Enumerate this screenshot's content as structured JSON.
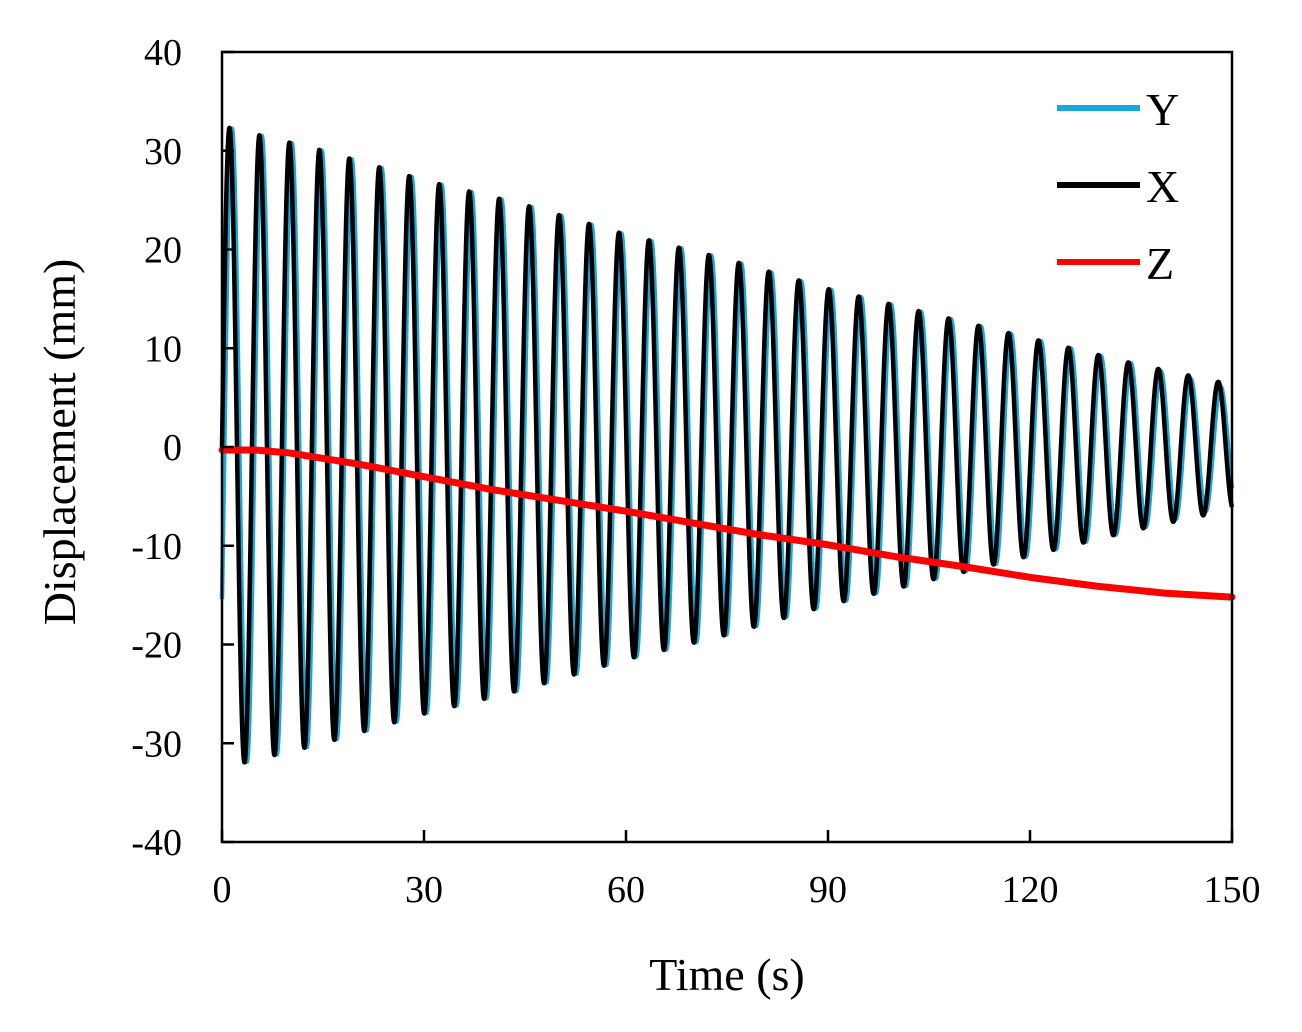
{
  "chart_data": {
    "type": "line",
    "title": "",
    "xlabel": "Time (s)",
    "ylabel": "Displacement (mm)",
    "xlim": [
      0,
      150
    ],
    "ylim": [
      -40,
      40
    ],
    "xticks": [
      0,
      30,
      60,
      90,
      120,
      150
    ],
    "yticks": [
      40,
      30,
      20,
      10,
      0,
      -10,
      -20,
      -30,
      -40
    ],
    "grid": false,
    "legend_position": "top-right",
    "series": [
      {
        "name": "Y",
        "color": "#1aa7dc",
        "kind": "damped_oscillation",
        "period_s": 4.45,
        "phase_lag_s": 0.35,
        "amplitude_points": [
          [
            0,
            32.5
          ],
          [
            15,
            30.0
          ],
          [
            30,
            27.0
          ],
          [
            45,
            24.5
          ],
          [
            60,
            21.5
          ],
          [
            75,
            19.0
          ],
          [
            90,
            16.0
          ],
          [
            105,
            13.5
          ],
          [
            120,
            11.0
          ],
          [
            135,
            8.5
          ],
          [
            150,
            5.8
          ]
        ],
        "offset_points": [
          [
            0,
            0
          ],
          [
            150,
            0
          ]
        ]
      },
      {
        "name": "X",
        "color": "#000000",
        "kind": "damped_oscillation",
        "period_s": 4.45,
        "phase_lag_s": 0.0,
        "amplitude_points": [
          [
            0,
            32.5
          ],
          [
            15,
            30.0
          ],
          [
            30,
            27.0
          ],
          [
            45,
            24.5
          ],
          [
            60,
            21.5
          ],
          [
            75,
            19.0
          ],
          [
            90,
            16.0
          ],
          [
            105,
            13.5
          ],
          [
            120,
            11.0
          ],
          [
            135,
            8.5
          ],
          [
            150,
            6.3
          ]
        ],
        "offset_points": [
          [
            0,
            0
          ],
          [
            150,
            0
          ]
        ]
      },
      {
        "name": "Z",
        "color": "#ff0000",
        "kind": "line",
        "x": [
          0,
          5,
          10,
          20,
          30,
          40,
          50,
          60,
          70,
          80,
          90,
          100,
          110,
          120,
          130,
          140,
          150
        ],
        "y": [
          -0.3,
          -0.3,
          -0.6,
          -1.7,
          -3.0,
          -4.3,
          -5.4,
          -6.5,
          -7.7,
          -8.9,
          -9.9,
          -11.1,
          -12.1,
          -13.2,
          -14.1,
          -14.8,
          -15.2
        ]
      }
    ]
  }
}
